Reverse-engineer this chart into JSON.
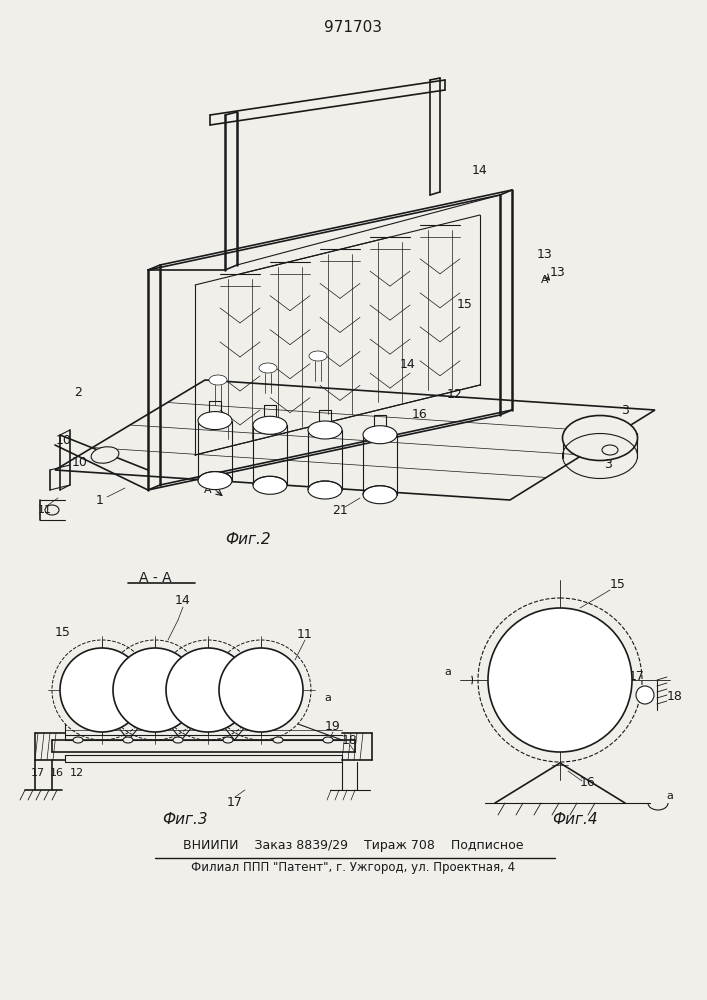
{
  "patent_number": "971703",
  "fig2_label": "Фиг.2",
  "fig3_label": "Фиг.3",
  "fig4_label": "Фиг.4",
  "footer_line1": "ВНИИПИ    Заказ 8839/29    Тираж 708    Подписное",
  "footer_line2": "Филиал ППП \"Патент\", г. Ужгород, ул. Проектная, 4",
  "bg_color": "#f0efea",
  "line_color": "#1a1a1a"
}
